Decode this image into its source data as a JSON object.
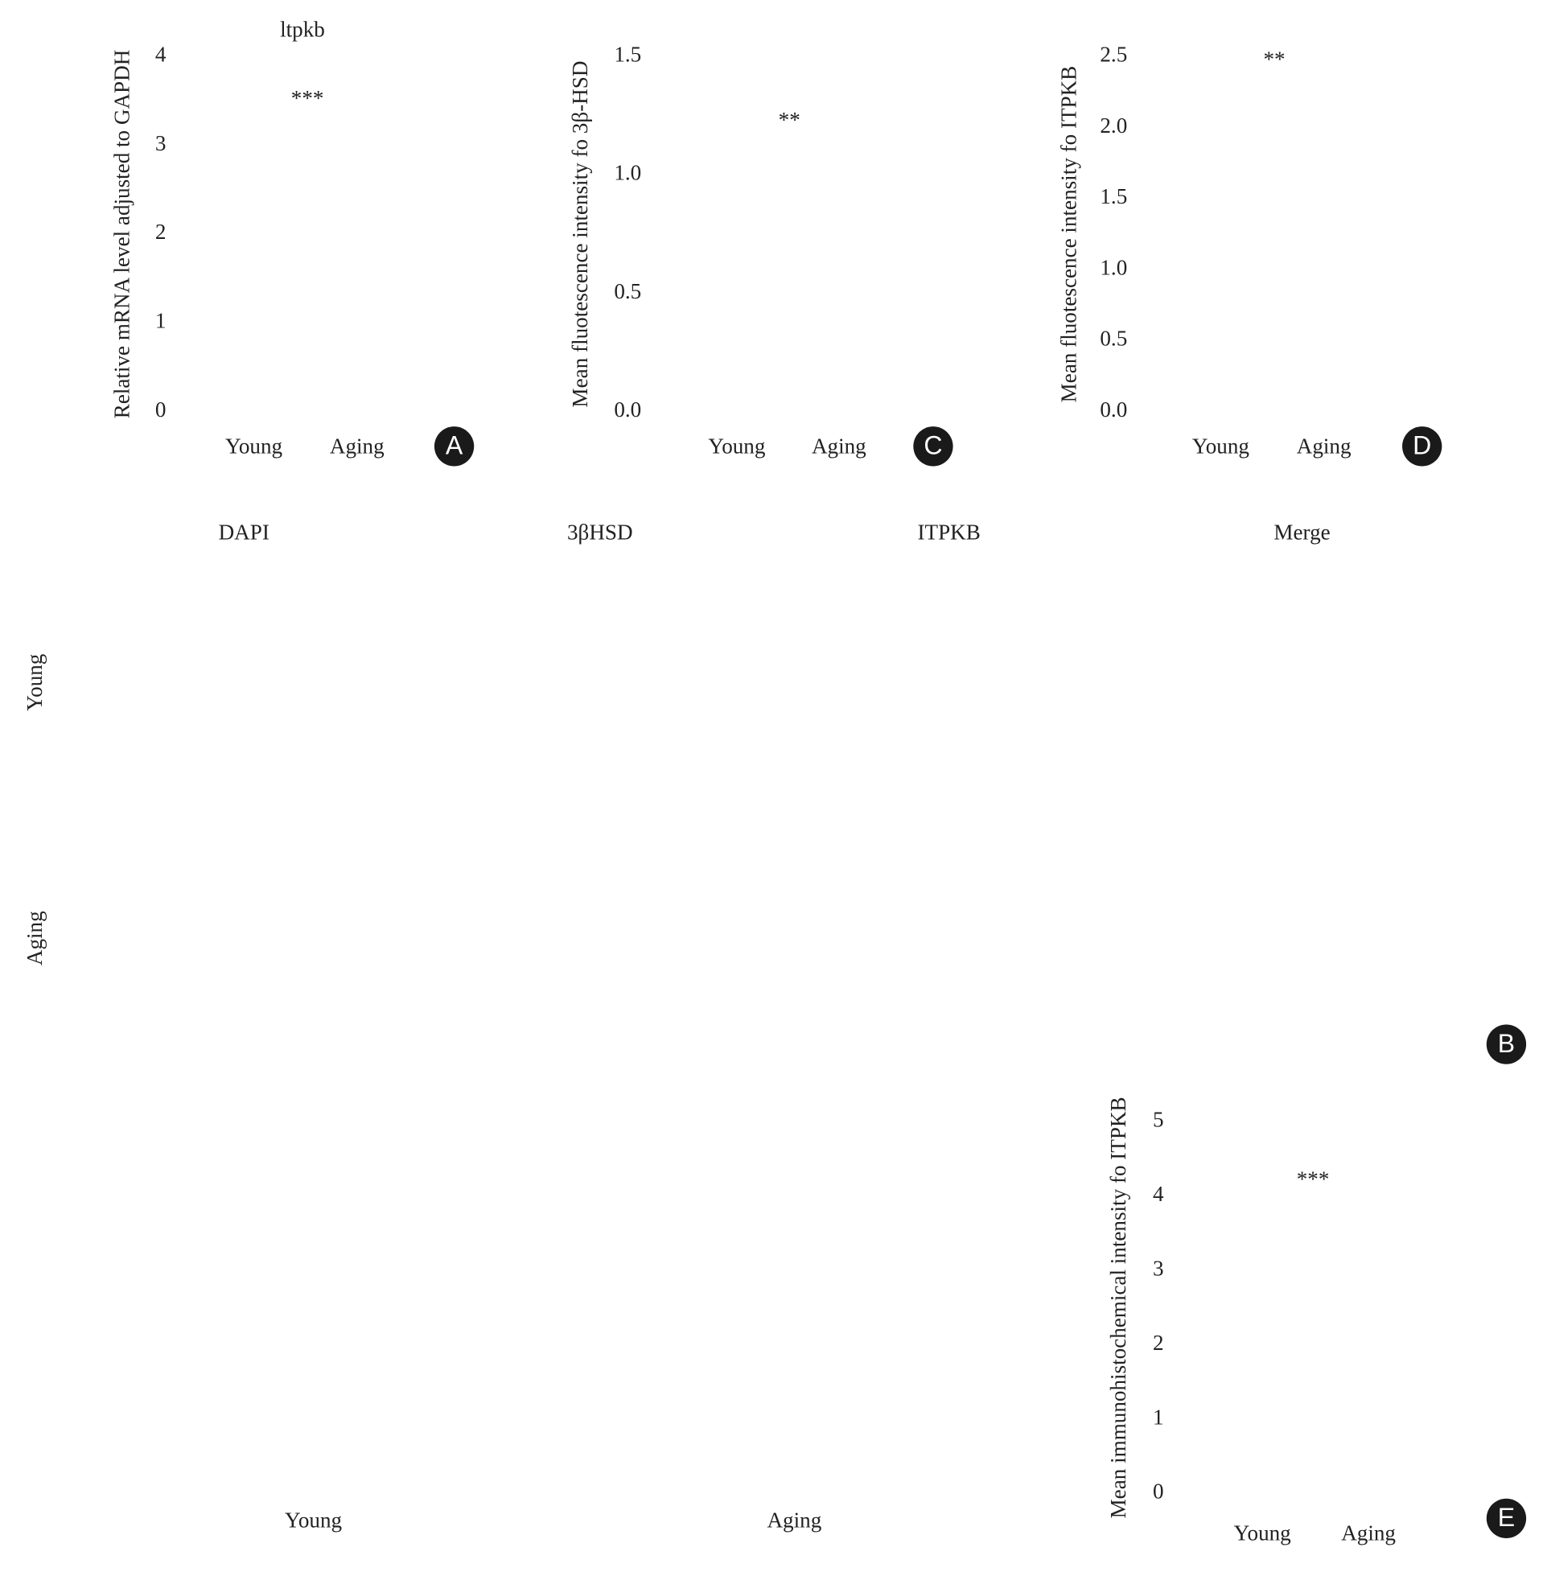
{
  "chart_data": [
    {
      "type": "bar",
      "title": "ltpkb",
      "ylabel": "Relative mRNA level adjusted to GAPDH",
      "categories": [
        "Young",
        "Aging"
      ],
      "ylim": [
        0,
        4
      ],
      "yticks": [
        0,
        1,
        2,
        3,
        4
      ],
      "annotation": "***"
    },
    {
      "type": "bar",
      "ylabel": "Mean fluotescence intensity fo 3β-HSD",
      "categories": [
        "Young",
        "Aging"
      ],
      "ylim": [
        0,
        1.5
      ],
      "yticks": [
        {
          "value": 0,
          "label": "0.0"
        },
        0.5,
        {
          "value": 1,
          "label": "1.0"
        },
        1.5
      ],
      "annotation": "**"
    },
    {
      "type": "bar",
      "ylabel": "Mean fluotescence intensity fo ITPKB",
      "categories": [
        "Young",
        "Aging"
      ],
      "ylim": [
        0,
        2.5
      ],
      "yticks": [
        {
          "value": 0,
          "label": "0.0"
        },
        0.5,
        {
          "value": 1,
          "label": "1.0"
        },
        1.5,
        {
          "value": 2,
          "label": "2.0"
        },
        2.5
      ],
      "annotation": "**"
    },
    {
      "type": "bar",
      "ylabel": "Mean immunohistochemical intensity fo ITPKB",
      "categories": [
        "Young",
        "Aging"
      ],
      "ylim": [
        0,
        5
      ],
      "yticks": [
        0,
        1,
        2,
        3,
        4,
        5
      ],
      "annotation": "***"
    }
  ],
  "figure": {
    "panel_labels": [
      "A",
      "C",
      "D",
      "E",
      "B"
    ],
    "image_columns": [
      "DAPI",
      "3βHSD",
      "ITPKB",
      "Merge"
    ],
    "image_rows": [
      "Young",
      "Aging"
    ],
    "bottom_labels": [
      "Young",
      "Aging"
    ]
  }
}
